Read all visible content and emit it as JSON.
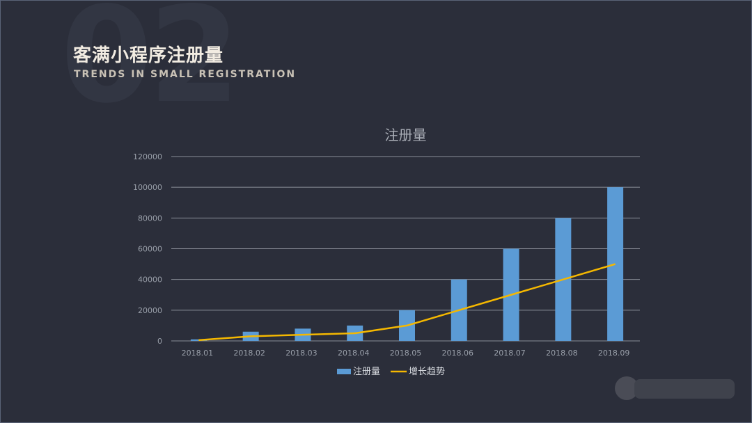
{
  "slide": {
    "bg_number": "02",
    "title": "客满小程序注册量",
    "subtitle": "TRENDS IN SMALL REGISTRATION"
  },
  "colors": {
    "background": "#2b2e3a",
    "bar": "#5b9bd5",
    "line": "#f5b800",
    "grid": "#8a8e98",
    "text": "#9aa0aa"
  },
  "chart_data": {
    "type": "bar",
    "title": "注册量",
    "categories": [
      "2018.01",
      "2018.02",
      "2018.03",
      "2018.04",
      "2018.05",
      "2018.06",
      "2018.07",
      "2018.08",
      "2018.09"
    ],
    "ylim": [
      0,
      120000
    ],
    "yticks": [
      "0",
      "20000",
      "40000",
      "60000",
      "80000",
      "100000",
      "120000"
    ],
    "grid": true,
    "legend_position": "bottom",
    "series": [
      {
        "name": "注册量",
        "type": "bar",
        "values": [
          1000,
          6000,
          8000,
          10000,
          20000,
          40000,
          60000,
          80000,
          100000
        ]
      },
      {
        "name": "增长趋势",
        "type": "line",
        "values": [
          500,
          3000,
          4000,
          5000,
          10000,
          20000,
          30000,
          40000,
          50000
        ]
      }
    ]
  }
}
